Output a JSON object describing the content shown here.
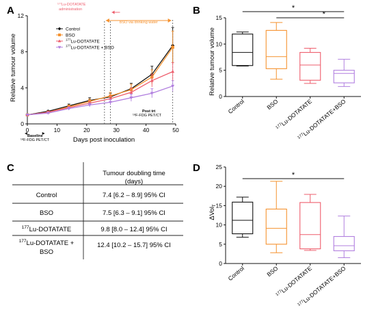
{
  "colors": {
    "control": "#111111",
    "bso": "#f5922f",
    "lu": "#ee5d6c",
    "lu_bso": "#b17fdf"
  },
  "chart_data": [
    {
      "panel": "A",
      "type": "line",
      "xlabel": "Days post inoculation",
      "ylabel": "Relative tumour volume",
      "xlim": [
        0,
        50
      ],
      "ylim": [
        0,
        12
      ],
      "xticks": [
        "0",
        "10",
        "20",
        "30",
        "40",
        "50"
      ],
      "yticks": [
        "0",
        "4",
        "8",
        "12"
      ],
      "legend": [
        "Control",
        "BSO",
        "177Lu-DOTATATE",
        "177Lu-DOTATATE + BSO"
      ],
      "legend_placement": "top-left",
      "annotations": {
        "admin": "177Lu-DOTATATE administration",
        "bso_water": "BSO via drinking water",
        "baseline_1": "Baseline",
        "baseline_2": "18F-FDG PET/CT",
        "posttrt_1": "Post trt",
        "posttrt_2": "18F-FDG PET/CT"
      },
      "admin_day": 28,
      "baseline_day": 26,
      "series": [
        {
          "name": "Control",
          "x": [
            0,
            7,
            14,
            21,
            28,
            35,
            42,
            49
          ],
          "y": [
            1.0,
            1.4,
            2.0,
            2.6,
            3.0,
            3.9,
            5.5,
            8.7
          ],
          "err": [
            0.05,
            0.1,
            0.2,
            0.3,
            0.4,
            0.6,
            0.9,
            2.0
          ]
        },
        {
          "name": "BSO",
          "x": [
            0,
            7,
            14,
            21,
            28,
            35,
            42,
            49
          ],
          "y": [
            1.0,
            1.3,
            1.9,
            2.5,
            3.1,
            3.8,
            5.2,
            8.5
          ],
          "err": [
            0.05,
            0.1,
            0.2,
            0.25,
            0.4,
            0.6,
            0.8,
            1.8
          ]
        },
        {
          "name": "177Lu-DOTATATE",
          "x": [
            0,
            7,
            14,
            21,
            28,
            35,
            42,
            49
          ],
          "y": [
            1.0,
            1.3,
            1.8,
            2.3,
            2.8,
            3.5,
            4.8,
            5.8
          ],
          "err": [
            0.05,
            0.1,
            0.15,
            0.2,
            0.3,
            0.5,
            0.7,
            1.0
          ]
        },
        {
          "name": "177Lu-DOTATATE + BSO",
          "x": [
            0,
            7,
            14,
            21,
            28,
            35,
            42,
            49
          ],
          "y": [
            1.0,
            1.2,
            1.7,
            2.1,
            2.4,
            2.9,
            3.4,
            4.2
          ],
          "err": [
            0.05,
            0.1,
            0.15,
            0.2,
            0.3,
            0.4,
            0.5,
            0.6
          ]
        }
      ]
    },
    {
      "panel": "B",
      "type": "box",
      "ylabel": "Relative tumour volume",
      "ylim": [
        0,
        15
      ],
      "yticks": [
        "0",
        "5",
        "10",
        "15"
      ],
      "categories": [
        "Control",
        "BSO",
        "177Lu-DOTATATE",
        "177Lu-DOTATATE+BSO"
      ],
      "boxes": [
        {
          "min": 5.8,
          "q1": 5.9,
          "median": 8.4,
          "q3": 11.9,
          "max": 12.3
        },
        {
          "min": 3.3,
          "q1": 5.3,
          "median": 7.6,
          "q3": 12.6,
          "max": 14.1
        },
        {
          "min": 2.5,
          "q1": 3.1,
          "median": 6.0,
          "q3": 8.4,
          "max": 9.2
        },
        {
          "min": 1.9,
          "q1": 2.6,
          "median": 4.4,
          "q3": 5.0,
          "max": 7.1
        }
      ],
      "significance": [
        {
          "from": 0,
          "to": 3,
          "label": "*"
        },
        {
          "from": 1,
          "to": 3,
          "label": "*"
        }
      ]
    },
    {
      "panel": "D",
      "type": "box",
      "ylabel": "ΔVolT",
      "ylim": [
        0,
        25
      ],
      "yticks": [
        "0",
        "5",
        "10",
        "15",
        "20",
        "25"
      ],
      "categories": [
        "Control",
        "BSO",
        "177Lu-DOTATATE",
        "177Lu-DOTATATE+BSO"
      ],
      "boxes": [
        {
          "min": 6.8,
          "q1": 7.7,
          "median": 11.2,
          "q3": 15.9,
          "max": 17.2
        },
        {
          "min": 2.8,
          "q1": 5.0,
          "median": 9.1,
          "q3": 14.1,
          "max": 21.3
        },
        {
          "min": 3.4,
          "q1": 3.8,
          "median": 7.5,
          "q3": 15.8,
          "max": 17.9
        },
        {
          "min": 1.5,
          "q1": 3.3,
          "median": 4.6,
          "q3": 7.0,
          "max": 12.3
        }
      ],
      "significance": [
        {
          "from": 0,
          "to": 3,
          "label": "*"
        }
      ]
    }
  ],
  "table": {
    "panel": "C",
    "header_1": "Tumour doubling time",
    "header_2": "(days)",
    "rows": [
      {
        "label": "Control",
        "value": "7.4 [6.2 – 8.9] 95% CI"
      },
      {
        "label": "BSO",
        "value": "7.5 [6.3 – 9.1] 95% CI"
      },
      {
        "label": "177Lu-DOTATATE",
        "value": "9.8 [8.0 – 12.4] 95% CI"
      },
      {
        "label_1": "177Lu-DOTATATE +",
        "label_2": "BSO",
        "value": "12.4 [10.2 – 15.7] 95% CI"
      }
    ]
  }
}
